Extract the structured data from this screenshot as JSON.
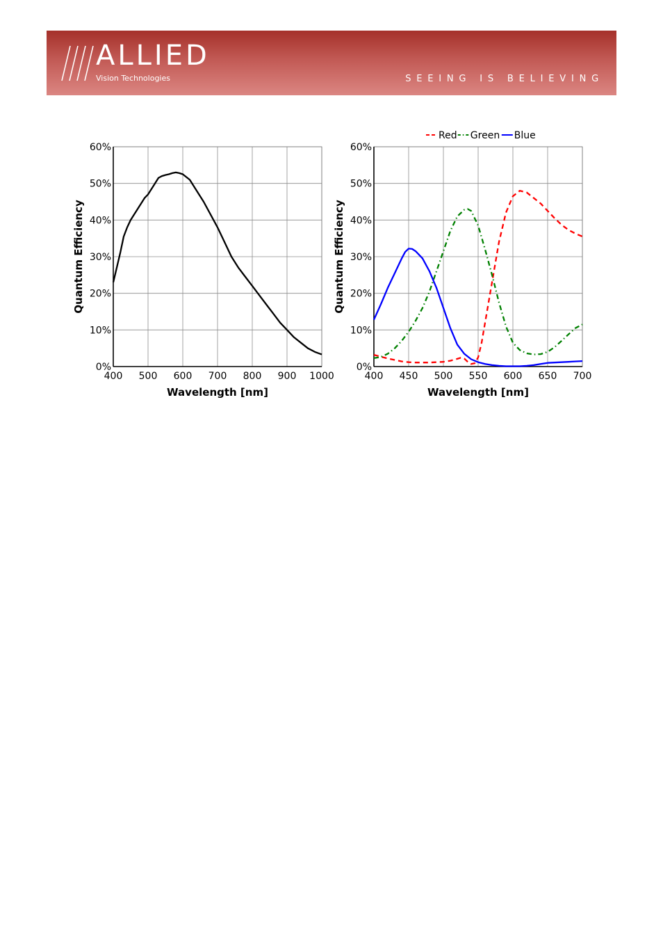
{
  "header": {
    "logo_word": "ALLIED",
    "logo_sub": "Vision Technologies",
    "tagline": "SEEING IS BELIEVING",
    "colors": {
      "banner_top": "#a5302a",
      "banner_bottom": "#db8682"
    }
  },
  "chart_data": [
    {
      "type": "line",
      "xlabel": "Wavelength [nm]",
      "ylabel": "Quantum Efficiency",
      "xlim": [
        400,
        1000
      ],
      "ylim": [
        0,
        60
      ],
      "xticks": [
        400,
        500,
        600,
        700,
        800,
        900,
        1000
      ],
      "yticks": [
        0,
        10,
        20,
        30,
        40,
        50,
        60
      ],
      "ytick_labels": [
        "0%",
        "10%",
        "20%",
        "30%",
        "40%",
        "50%",
        "60%"
      ],
      "grid": true,
      "series": [
        {
          "color": "#000000",
          "style": "solid",
          "x": [
            400,
            410,
            420,
            430,
            440,
            450,
            460,
            470,
            480,
            490,
            500,
            510,
            520,
            530,
            540,
            550,
            560,
            570,
            580,
            590,
            600,
            620,
            640,
            660,
            680,
            700,
            720,
            740,
            760,
            780,
            800,
            820,
            840,
            860,
            880,
            900,
            920,
            940,
            960,
            980,
            1000
          ],
          "y": [
            23,
            27,
            31,
            35.5,
            38,
            40,
            41.5,
            43,
            44.5,
            46,
            47,
            48.5,
            50,
            51.5,
            52,
            52.3,
            52.5,
            52.8,
            53,
            52.8,
            52.5,
            51,
            48,
            45,
            41.5,
            38,
            34,
            30,
            27,
            24.5,
            22,
            19.5,
            17,
            14.5,
            12,
            10,
            8,
            6.5,
            5,
            4,
            3.3
          ]
        }
      ]
    },
    {
      "type": "line",
      "xlabel": "Wavelength [nm]",
      "ylabel": "Quantum Efficiency",
      "xlim": [
        400,
        700
      ],
      "ylim": [
        0,
        60
      ],
      "xticks": [
        400,
        450,
        500,
        550,
        600,
        650,
        700
      ],
      "yticks": [
        0,
        10,
        20,
        30,
        40,
        50,
        60
      ],
      "ytick_labels": [
        "0%",
        "10%",
        "20%",
        "30%",
        "40%",
        "50%",
        "60%"
      ],
      "grid": true,
      "legend_position": "top",
      "series": [
        {
          "name": "Red",
          "color": "#ff0000",
          "style": "dashed",
          "x": [
            400,
            410,
            420,
            430,
            440,
            450,
            460,
            470,
            480,
            490,
            500,
            510,
            520,
            525,
            530,
            535,
            540,
            545,
            550,
            555,
            560,
            570,
            580,
            590,
            600,
            610,
            620,
            630,
            640,
            650,
            660,
            670,
            680,
            690,
            700
          ],
          "y": [
            3.2,
            2.7,
            2.2,
            1.8,
            1.4,
            1.2,
            1.1,
            1.1,
            1.1,
            1.2,
            1.3,
            1.6,
            2.1,
            2.4,
            2.2,
            1.3,
            0.7,
            0.9,
            2.5,
            6.5,
            12,
            23,
            34,
            42,
            46.5,
            48,
            47.5,
            46,
            44.5,
            42.5,
            40.5,
            38.7,
            37.3,
            36.3,
            35.5
          ]
        },
        {
          "name": "Green",
          "color": "#008000",
          "style": "dashdot",
          "x": [
            400,
            410,
            420,
            430,
            440,
            450,
            460,
            470,
            480,
            490,
            500,
            510,
            520,
            530,
            535,
            540,
            550,
            560,
            570,
            580,
            590,
            600,
            610,
            620,
            630,
            640,
            650,
            660,
            670,
            680,
            690,
            700
          ],
          "y": [
            2.3,
            2.6,
            3.5,
            5,
            7,
            9.5,
            12.5,
            16,
            20.5,
            26,
            31.5,
            37,
            41,
            42.8,
            43,
            42.5,
            38.5,
            32,
            25,
            17.5,
            11,
            6.5,
            4.5,
            3.6,
            3.3,
            3.4,
            4,
            5.3,
            7,
            8.8,
            10.5,
            11.5
          ]
        },
        {
          "name": "Blue",
          "color": "#0000ff",
          "style": "solid",
          "x": [
            400,
            410,
            420,
            430,
            440,
            445,
            450,
            455,
            460,
            470,
            480,
            490,
            500,
            510,
            520,
            530,
            540,
            550,
            560,
            570,
            580,
            590,
            600,
            610,
            620,
            630,
            640,
            650,
            660,
            670,
            680,
            690,
            700
          ],
          "y": [
            12.8,
            17,
            21.5,
            25.5,
            29.5,
            31.3,
            32.2,
            32.1,
            31.5,
            29.5,
            26,
            21.5,
            16,
            10.5,
            6,
            3.5,
            2,
            1.2,
            0.7,
            0.4,
            0.2,
            0.1,
            0.1,
            0.1,
            0.2,
            0.4,
            0.7,
            1,
            1.1,
            1.2,
            1.3,
            1.4,
            1.5
          ]
        }
      ]
    }
  ]
}
